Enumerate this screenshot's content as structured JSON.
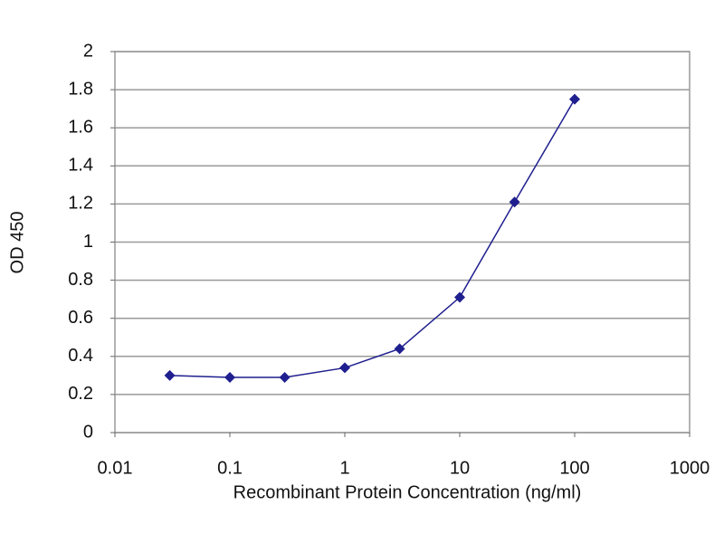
{
  "chart_data": {
    "type": "line",
    "x_label": "Recombinant Protein Concentration (ng/ml)",
    "y_label": "OD 450",
    "x": [
      0.03,
      0.1,
      0.3,
      1,
      3,
      10,
      30,
      100
    ],
    "series": [
      {
        "color": "#1f1f8f",
        "values": [
          0.3,
          0.29,
          0.29,
          0.34,
          0.44,
          0.71,
          1.21,
          1.75
        ]
      }
    ],
    "xlim": [
      0.01,
      1000
    ],
    "xticks": [
      0.01,
      0.1,
      1,
      10,
      100,
      1000
    ],
    "x_log": true,
    "ylim": [
      0,
      2
    ],
    "yticks": [
      0,
      0.2,
      0.4,
      0.6,
      0.8,
      1,
      1.2,
      1.4,
      1.6,
      1.8,
      2
    ],
    "grid": true
  }
}
